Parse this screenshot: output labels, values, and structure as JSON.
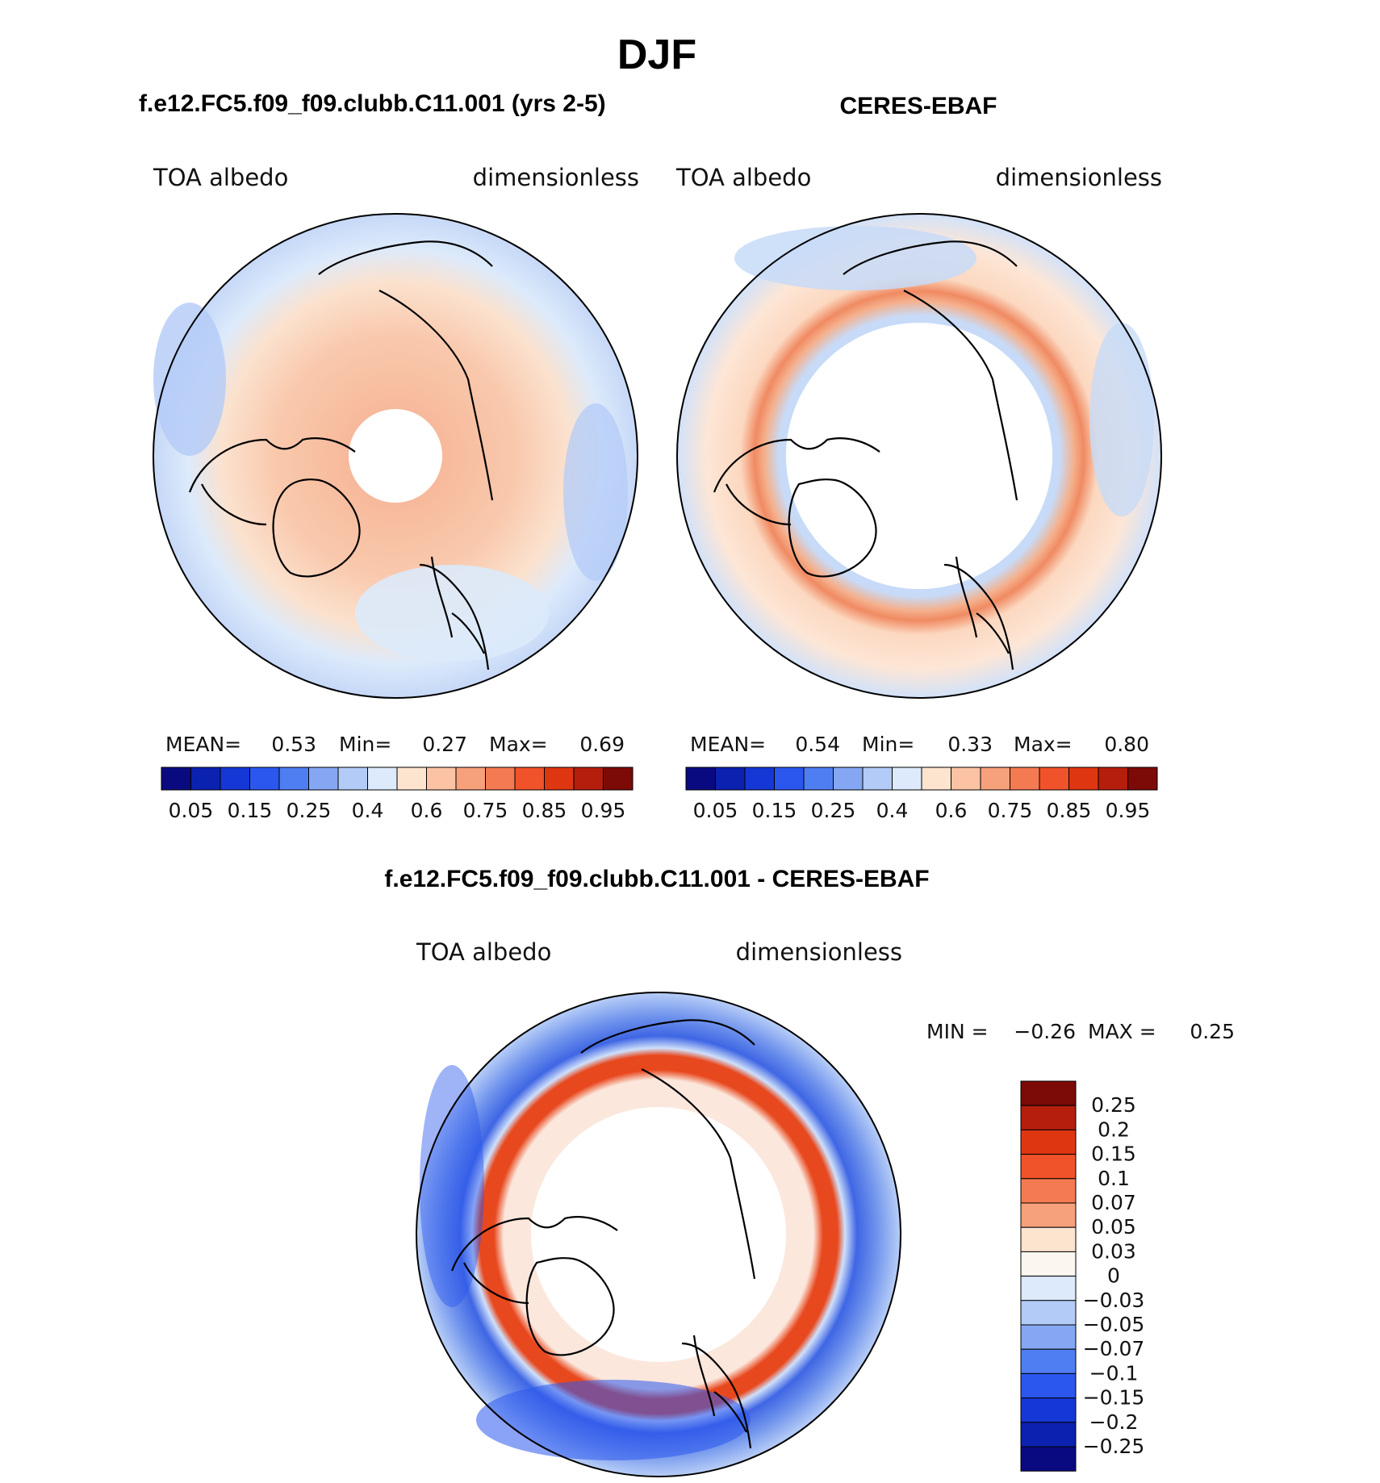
{
  "figure": {
    "season": "DJF",
    "panel_left_title": "f.e12.FC5.f09_f09.clubb.C11.001 (yrs 2-5)",
    "panel_right_title": "CERES-EBAF",
    "diff_title": "f.e12.FC5.f09_f09.clubb.C11.001 - CERES-EBAF"
  },
  "chart_data": [
    {
      "type": "heatmap",
      "projection": "north-polar-stereographic",
      "title": "f.e12.FC5.f09_f09.clubb.C11.001 (yrs 2-5)",
      "variable_label": "TOA albedo",
      "units_label": "dimensionless",
      "stats": {
        "mean_label": "MEAN=",
        "mean": "0.53",
        "min_label": "Min=",
        "min": "0.27",
        "max_label": "Max=",
        "max": "0.69"
      },
      "levels": [
        0.05,
        0.1,
        0.15,
        0.2,
        0.25,
        0.3,
        0.4,
        0.5,
        0.6,
        0.65,
        0.75,
        0.8,
        0.85,
        0.9,
        0.95
      ],
      "colorbar_labels": [
        "0.05",
        "0.15",
        "0.25",
        "0.4",
        "0.6",
        "0.75",
        "0.85",
        "0.95"
      ],
      "colors": [
        "#0a0a80",
        "#0b22b0",
        "#1537d6",
        "#2b57ee",
        "#4f7ef2",
        "#85a7f3",
        "#b3cbf7",
        "#dceafb",
        "#fde4cf",
        "#fbc3a3",
        "#f7a07c",
        "#f47a52",
        "#f0522a",
        "#df3612",
        "#b51e0d",
        "#7c0a06"
      ]
    },
    {
      "type": "heatmap",
      "projection": "north-polar-stereographic",
      "title": "CERES-EBAF",
      "variable_label": "TOA albedo",
      "units_label": "dimensionless",
      "stats": {
        "mean_label": "MEAN=",
        "mean": "0.54",
        "min_label": "Min=",
        "min": "0.33",
        "max_label": "Max=",
        "max": "0.80"
      },
      "levels": [
        0.05,
        0.1,
        0.15,
        0.2,
        0.25,
        0.3,
        0.4,
        0.5,
        0.6,
        0.65,
        0.75,
        0.8,
        0.85,
        0.9,
        0.95
      ],
      "colorbar_labels": [
        "0.05",
        "0.15",
        "0.25",
        "0.4",
        "0.6",
        "0.75",
        "0.85",
        "0.95"
      ],
      "colors": [
        "#0a0a80",
        "#0b22b0",
        "#1537d6",
        "#2b57ee",
        "#4f7ef2",
        "#85a7f3",
        "#b3cbf7",
        "#dceafb",
        "#fde4cf",
        "#fbc3a3",
        "#f7a07c",
        "#f47a52",
        "#f0522a",
        "#df3612",
        "#b51e0d",
        "#7c0a06"
      ]
    },
    {
      "type": "heatmap",
      "projection": "north-polar-stereographic",
      "title": "f.e12.FC5.f09_f09.clubb.C11.001 - CERES-EBAF",
      "variable_label": "TOA albedo",
      "units_label": "dimensionless",
      "stats": {
        "min_label": "MIN =",
        "min": "−0.26",
        "max_label": "MAX =",
        "max": "0.25"
      },
      "levels_labels": [
        "0.25",
        "0.2",
        "0.15",
        "0.1",
        "0.07",
        "0.05",
        "0.03",
        "0",
        "−0.03",
        "−0.05",
        "−0.07",
        "−0.1",
        "−0.15",
        "−0.2",
        "−0.25"
      ],
      "colors": [
        "#7c0a06",
        "#b51e0d",
        "#df3612",
        "#f0522a",
        "#f47a52",
        "#f7a07c",
        "#fde4cf",
        "#fbf6ef",
        "#dceafb",
        "#b3cbf7",
        "#85a7f3",
        "#4f7ef2",
        "#2b57ee",
        "#1537d6",
        "#0b22b0",
        "#0a0a80"
      ]
    }
  ]
}
